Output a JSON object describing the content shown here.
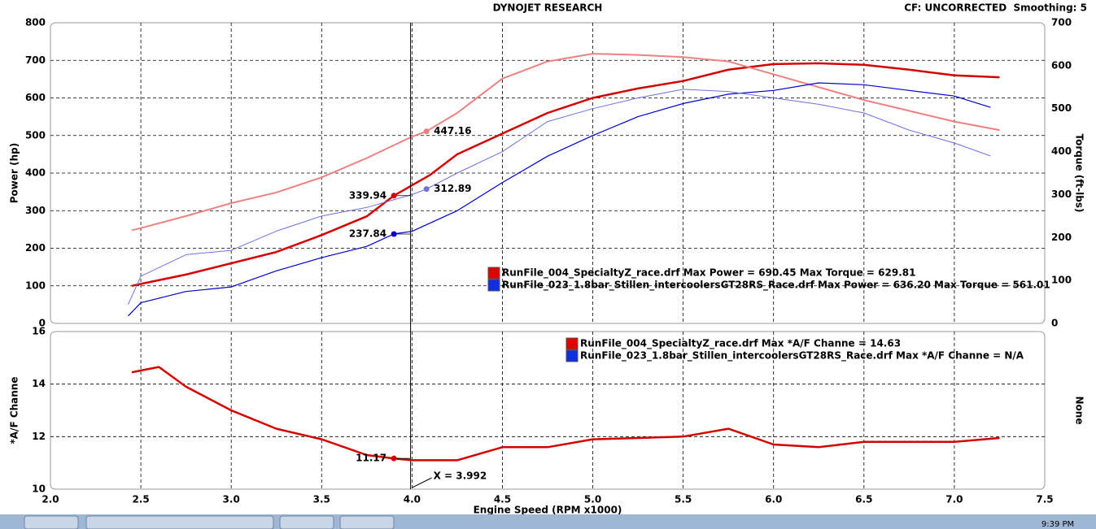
{
  "header": {
    "title": "DYNOJET RESEARCH",
    "settings": "CF: UNCORRECTED  Smoothing: 5"
  },
  "chart_data": [
    {
      "type": "line",
      "y_label": "Power (hp)",
      "y2_label": "Torque (ft-lbs)",
      "xlim": [
        2.0,
        7.5
      ],
      "ylim": [
        0,
        800
      ],
      "yticks": [
        0,
        100,
        200,
        300,
        400,
        500,
        600,
        700,
        800
      ],
      "y2lim": [
        0,
        700
      ],
      "y2ticks": [
        0,
        100,
        200,
        300,
        400,
        500,
        600,
        700
      ],
      "grid": true,
      "series": [
        {
          "color": "#d40000",
          "x": [
            2.45,
            2.5,
            2.75,
            3.0,
            3.25,
            3.5,
            3.75,
            3.9,
            4.1,
            4.25,
            4.5,
            4.75,
            5.0,
            5.25,
            5.5,
            5.75,
            6.0,
            6.25,
            6.5,
            6.75,
            7.0,
            7.25
          ],
          "values": [
            100,
            105,
            130,
            160,
            190,
            235,
            285,
            340,
            395,
            450,
            505,
            560,
            600,
            625,
            645,
            675,
            690,
            692,
            688,
            675,
            660,
            655
          ]
        },
        {
          "color": "#f08080",
          "axis": "y2",
          "x": [
            2.45,
            2.5,
            2.75,
            3.0,
            3.25,
            3.5,
            3.75,
            4.0,
            4.08,
            4.25,
            4.5,
            4.75,
            5.0,
            5.25,
            5.5,
            5.75,
            6.0,
            6.25,
            6.5,
            6.75,
            7.0,
            7.25
          ],
          "values": [
            217,
            222,
            250,
            280,
            305,
            340,
            385,
            435,
            447,
            490,
            570,
            610,
            628,
            625,
            620,
            610,
            580,
            550,
            520,
            495,
            470,
            450
          ]
        },
        {
          "color": "#0000cc",
          "x": [
            2.43,
            2.5,
            2.75,
            3.0,
            3.25,
            3.5,
            3.75,
            3.9,
            4.0,
            4.25,
            4.5,
            4.75,
            5.0,
            5.25,
            5.5,
            5.75,
            6.0,
            6.25,
            6.5,
            6.75,
            7.0,
            7.2
          ],
          "values": [
            20,
            55,
            85,
            97,
            140,
            175,
            205,
            238,
            245,
            300,
            375,
            445,
            500,
            550,
            585,
            610,
            620,
            640,
            635,
            620,
            605,
            575
          ]
        },
        {
          "color": "#7070e0",
          "axis": "y2",
          "x": [
            2.43,
            2.5,
            2.75,
            3.0,
            3.25,
            3.5,
            3.75,
            4.0,
            4.08,
            4.25,
            4.5,
            4.75,
            5.0,
            5.25,
            5.5,
            5.75,
            6.0,
            6.25,
            6.5,
            6.75,
            7.0,
            7.2
          ],
          "values": [
            44,
            110,
            160,
            170,
            215,
            250,
            270,
            300,
            313,
            350,
            400,
            470,
            500,
            525,
            545,
            540,
            525,
            510,
            490,
            450,
            420,
            390
          ]
        }
      ],
      "markers": [
        {
          "x": 3.9,
          "value": 339.94,
          "color": "#d40000"
        },
        {
          "x": 4.08,
          "value": 447.16,
          "axis": "y2",
          "color": "#f08080"
        },
        {
          "x": 3.9,
          "value": 237.84,
          "color": "#0000cc"
        },
        {
          "x": 4.08,
          "value": 312.89,
          "axis": "y2",
          "color": "#7070e0"
        }
      ],
      "legend": [
        "RunFile_004_SpecialtyZ_race.drf Max Power = 690.45 Max Torque = 629.81",
        "RunFile_023_1.8bar_Stillen_intercoolersGT28RS_Race.drf Max Power = 636.20 Max Torque = 561.01"
      ],
      "legend_colors": [
        "#e00000",
        "#1030e0"
      ]
    },
    {
      "type": "line",
      "y_label": "*A/F Channe",
      "y2_label": "None",
      "x_label": "Engine Speed (RPM x1000)",
      "xlim": [
        2.0,
        7.5
      ],
      "xticks": [
        {
          "value": 2,
          "label": "2.0"
        },
        2.5,
        {
          "value": 3,
          "label": "3.0"
        },
        3.5,
        {
          "value": 4,
          "label": "4.0"
        },
        4.5,
        {
          "value": 5,
          "label": "5.0"
        },
        5.5,
        {
          "value": 6,
          "label": "6.0"
        },
        6.5,
        {
          "value": 7,
          "label": "7.0"
        },
        7.5
      ],
      "ylim": [
        10,
        16
      ],
      "yticks": [
        10,
        12,
        14,
        16
      ],
      "grid": true,
      "series": [
        {
          "color": "#d40000",
          "x": [
            2.45,
            2.6,
            2.75,
            3.0,
            3.25,
            3.5,
            3.75,
            3.9,
            4.0,
            4.25,
            4.5,
            4.75,
            5.0,
            5.25,
            5.5,
            5.75,
            6.0,
            6.25,
            6.5,
            6.75,
            7.0,
            7.25
          ],
          "values": [
            14.45,
            14.65,
            13.9,
            13.0,
            12.3,
            11.9,
            11.3,
            11.17,
            11.1,
            11.1,
            11.6,
            11.6,
            11.9,
            11.95,
            12.0,
            12.3,
            11.7,
            11.6,
            11.8,
            11.8,
            11.8,
            11.95
          ]
        }
      ],
      "markers": [
        {
          "x": 3.9,
          "value": 11.17,
          "color": "#d40000"
        }
      ],
      "cursor": {
        "x": 3.992,
        "label": "X = 3.992"
      },
      "legend": [
        "RunFile_004_SpecialtyZ_race.drf Max *A/F Channe = 14.63",
        "RunFile_023_1.8bar_Stillen_intercoolersGT28RS_Race.drf Max *A/F Channe = N/A"
      ],
      "legend_colors": [
        "#e00000",
        "#1030e0"
      ]
    }
  ],
  "taskbar": {
    "clock": "9:39 PM"
  }
}
